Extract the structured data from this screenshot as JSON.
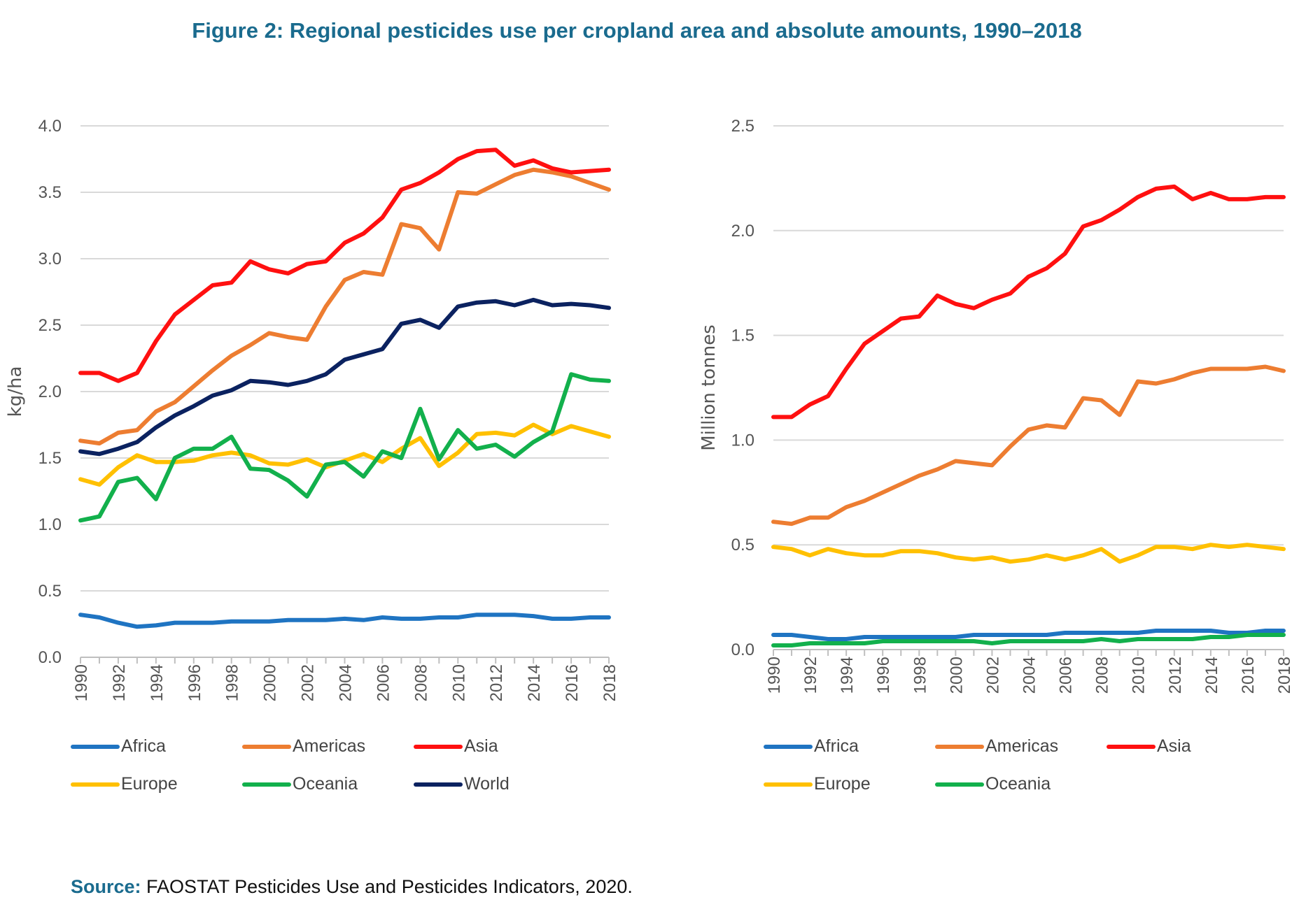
{
  "title": "Figure 2: Regional pesticides use per cropland area and absolute amounts, 1990–2018",
  "source": {
    "label": "Source:",
    "text": "FAOSTAT Pesticides Use and Pesticides Indicators, 2020."
  },
  "colors": {
    "Africa": "#1f74c2",
    "Americas": "#ed7d31",
    "Asia": "#ff1010",
    "Europe": "#ffc000",
    "Oceania": "#12b04c",
    "World": "#0b2260",
    "grid": "#d9d9d9",
    "axis": "#bfbfbf"
  },
  "chart_data": [
    {
      "type": "line",
      "ylabel": "kg/ha",
      "xlabel": "",
      "ylim": [
        0,
        4.0
      ],
      "yticks": [
        "0.0",
        "0.5",
        "1.0",
        "1.5",
        "2.0",
        "2.5",
        "3.0",
        "3.5",
        "4.0"
      ],
      "x": [
        1990,
        1991,
        1992,
        1993,
        1994,
        1995,
        1996,
        1997,
        1998,
        1999,
        2000,
        2001,
        2002,
        2003,
        2004,
        2005,
        2006,
        2007,
        2008,
        2009,
        2010,
        2011,
        2012,
        2013,
        2014,
        2015,
        2016,
        2017,
        2018
      ],
      "xtick_labels": [
        "1990",
        "1992",
        "1994",
        "1996",
        "1998",
        "2000",
        "2002",
        "2004",
        "2006",
        "2008",
        "2010",
        "2012",
        "2014",
        "2016",
        "2018"
      ],
      "grid": true,
      "legend_placement": "bottom",
      "series": [
        {
          "name": "Africa",
          "values": [
            0.32,
            0.3,
            0.26,
            0.23,
            0.24,
            0.26,
            0.26,
            0.26,
            0.27,
            0.27,
            0.27,
            0.28,
            0.28,
            0.28,
            0.29,
            0.28,
            0.3,
            0.29,
            0.29,
            0.3,
            0.3,
            0.32,
            0.32,
            0.32,
            0.31,
            0.29,
            0.29,
            0.3,
            0.3
          ]
        },
        {
          "name": "Americas",
          "values": [
            1.63,
            1.61,
            1.69,
            1.71,
            1.85,
            1.92,
            2.04,
            2.16,
            2.27,
            2.35,
            2.44,
            2.41,
            2.39,
            2.64,
            2.84,
            2.9,
            2.88,
            3.26,
            3.23,
            3.07,
            3.5,
            3.49,
            3.56,
            3.63,
            3.67,
            3.65,
            3.62,
            3.57,
            3.52
          ]
        },
        {
          "name": "Asia",
          "values": [
            2.14,
            2.14,
            2.08,
            2.14,
            2.38,
            2.58,
            2.69,
            2.8,
            2.82,
            2.98,
            2.92,
            2.89,
            2.96,
            2.98,
            3.12,
            3.19,
            3.31,
            3.52,
            3.57,
            3.65,
            3.75,
            3.81,
            3.82,
            3.7,
            3.74,
            3.68,
            3.65,
            3.66,
            3.67
          ]
        },
        {
          "name": "Europe",
          "values": [
            1.34,
            1.3,
            1.43,
            1.52,
            1.47,
            1.47,
            1.48,
            1.52,
            1.54,
            1.52,
            1.46,
            1.45,
            1.49,
            1.43,
            1.48,
            1.53,
            1.47,
            1.57,
            1.65,
            1.44,
            1.54,
            1.68,
            1.69,
            1.67,
            1.75,
            1.68,
            1.74,
            1.7,
            1.66
          ]
        },
        {
          "name": "Oceania",
          "values": [
            1.03,
            1.06,
            1.32,
            1.35,
            1.19,
            1.5,
            1.57,
            1.57,
            1.66,
            1.42,
            1.41,
            1.33,
            1.21,
            1.45,
            1.47,
            1.36,
            1.55,
            1.5,
            1.87,
            1.49,
            1.71,
            1.57,
            1.6,
            1.51,
            1.62,
            1.7,
            2.13,
            2.09,
            2.08
          ]
        },
        {
          "name": "World",
          "values": [
            1.55,
            1.53,
            1.57,
            1.62,
            1.73,
            1.82,
            1.89,
            1.97,
            2.01,
            2.08,
            2.07,
            2.05,
            2.08,
            2.13,
            2.24,
            2.28,
            2.32,
            2.51,
            2.54,
            2.48,
            2.64,
            2.67,
            2.68,
            2.65,
            2.69,
            2.65,
            2.66,
            2.65,
            2.63
          ]
        }
      ]
    },
    {
      "type": "line",
      "ylabel": "Million tonnes",
      "xlabel": "",
      "ylim": [
        0,
        2.5
      ],
      "yticks": [
        "0.0",
        "0.5",
        "1.0",
        "1.5",
        "2.0",
        "2.5"
      ],
      "x": [
        1990,
        1991,
        1992,
        1993,
        1994,
        1995,
        1996,
        1997,
        1998,
        1999,
        2000,
        2001,
        2002,
        2003,
        2004,
        2005,
        2006,
        2007,
        2008,
        2009,
        2010,
        2011,
        2012,
        2013,
        2014,
        2015,
        2016,
        2017,
        2018
      ],
      "xtick_labels": [
        "1990",
        "1992",
        "1994",
        "1996",
        "1998",
        "2000",
        "2002",
        "2004",
        "2006",
        "2008",
        "2010",
        "2012",
        "2014",
        "2016",
        "2018"
      ],
      "grid": true,
      "legend_placement": "bottom",
      "series": [
        {
          "name": "Africa",
          "values": [
            0.07,
            0.07,
            0.06,
            0.05,
            0.05,
            0.06,
            0.06,
            0.06,
            0.06,
            0.06,
            0.06,
            0.07,
            0.07,
            0.07,
            0.07,
            0.07,
            0.08,
            0.08,
            0.08,
            0.08,
            0.08,
            0.09,
            0.09,
            0.09,
            0.09,
            0.08,
            0.08,
            0.09,
            0.09
          ]
        },
        {
          "name": "Americas",
          "values": [
            0.61,
            0.6,
            0.63,
            0.63,
            0.68,
            0.71,
            0.75,
            0.79,
            0.83,
            0.86,
            0.9,
            0.89,
            0.88,
            0.97,
            1.05,
            1.07,
            1.06,
            1.2,
            1.19,
            1.12,
            1.28,
            1.27,
            1.29,
            1.32,
            1.34,
            1.34,
            1.34,
            1.35,
            1.33
          ]
        },
        {
          "name": "Asia",
          "values": [
            1.11,
            1.11,
            1.17,
            1.21,
            1.34,
            1.46,
            1.52,
            1.58,
            1.59,
            1.69,
            1.65,
            1.63,
            1.67,
            1.7,
            1.78,
            1.82,
            1.89,
            2.02,
            2.05,
            2.1,
            2.16,
            2.2,
            2.21,
            2.15,
            2.18,
            2.15,
            2.15,
            2.16,
            2.16
          ]
        },
        {
          "name": "Europe",
          "values": [
            0.49,
            0.48,
            0.45,
            0.48,
            0.46,
            0.45,
            0.45,
            0.47,
            0.47,
            0.46,
            0.44,
            0.43,
            0.44,
            0.42,
            0.43,
            0.45,
            0.43,
            0.45,
            0.48,
            0.42,
            0.45,
            0.49,
            0.49,
            0.48,
            0.5,
            0.49,
            0.5,
            0.49,
            0.48
          ]
        },
        {
          "name": "Oceania",
          "values": [
            0.02,
            0.02,
            0.03,
            0.03,
            0.03,
            0.03,
            0.04,
            0.04,
            0.04,
            0.04,
            0.04,
            0.04,
            0.03,
            0.04,
            0.04,
            0.04,
            0.04,
            0.04,
            0.05,
            0.04,
            0.05,
            0.05,
            0.05,
            0.05,
            0.06,
            0.06,
            0.07,
            0.07,
            0.07
          ]
        }
      ]
    }
  ]
}
